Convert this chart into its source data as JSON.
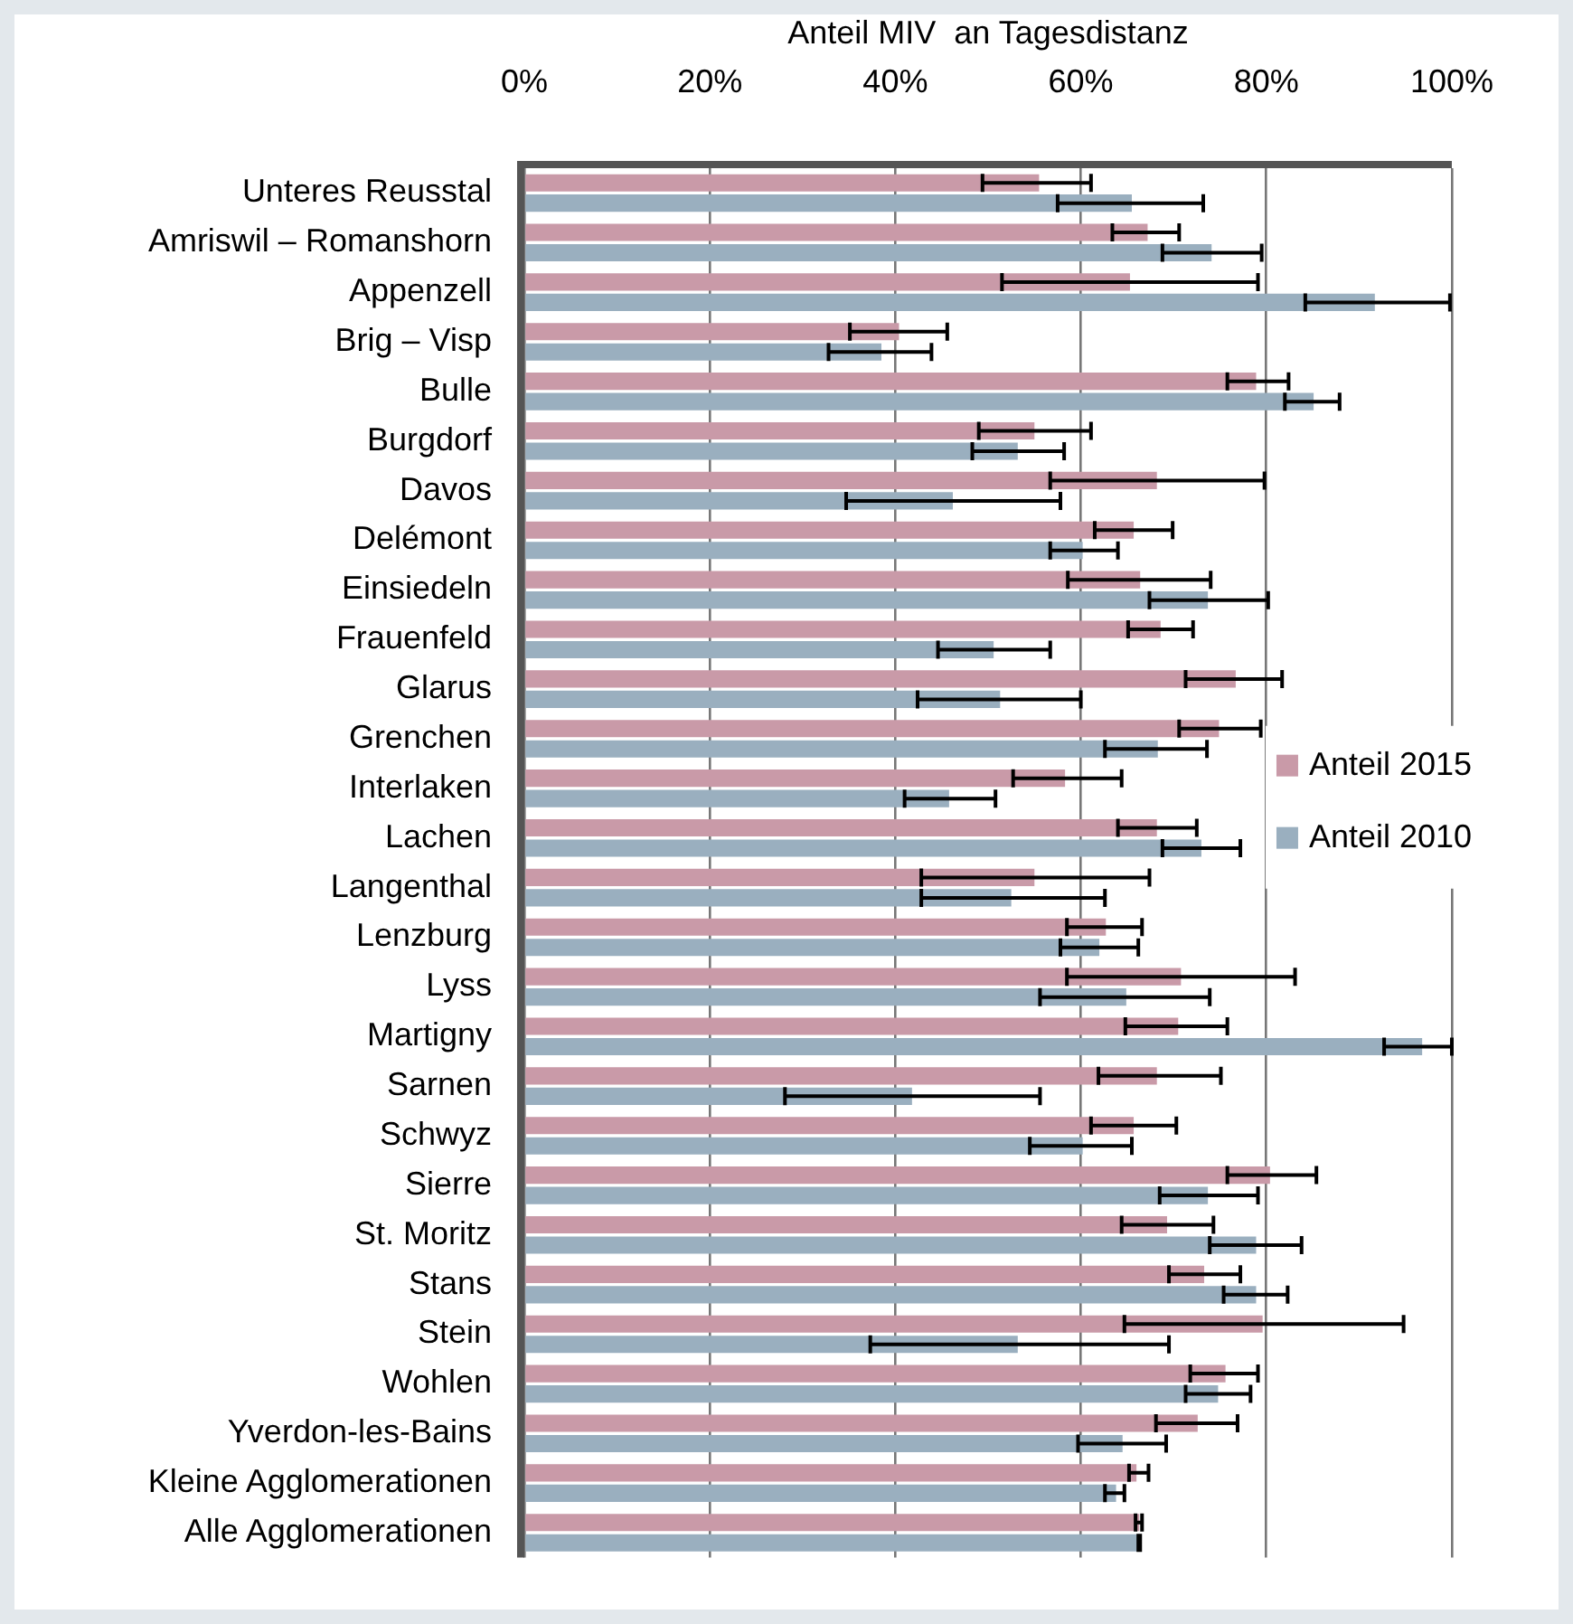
{
  "chart_data": {
    "type": "bar",
    "orientation": "horizontal",
    "xlabel": "Anteil MIV  an Tagesdistanz",
    "categories": [
      "Unteres Reusstal",
      "Amriswil – Romanshorn",
      "Appenzell",
      "Brig – Visp",
      "Bulle",
      "Burgdorf",
      "Davos",
      "Delémont",
      "Einsiedeln",
      "Frauenfeld",
      "Glarus",
      "Grenchen",
      "Interlaken",
      "Lachen",
      "Langenthal",
      "Lenzburg",
      "Lyss",
      "Martigny",
      "Sarnen",
      "Schwyz",
      "Sierre",
      "St. Moritz",
      "Stans",
      "Stein",
      "Wohlen",
      "Yverdon-les-Bains",
      "Kleine Agglomerationen",
      "Alle Agglomerationen"
    ],
    "series": [
      {
        "name": "Anteil 2015",
        "color": "#c99aa8",
        "values": [
          55.5,
          67.2,
          65.3,
          40.4,
          78.9,
          55.0,
          68.2,
          65.7,
          66.4,
          68.6,
          76.7,
          74.9,
          58.3,
          68.2,
          55.0,
          62.7,
          70.8,
          70.5,
          68.2,
          65.7,
          80.4,
          69.3,
          73.3,
          79.6,
          75.6,
          72.6,
          66.0,
          66.3
        ],
        "errors": [
          [
            49.4,
            61.1
          ],
          [
            63.4,
            70.6
          ],
          [
            51.5,
            79.1
          ],
          [
            35.1,
            45.6
          ],
          [
            75.8,
            82.4
          ],
          [
            49.0,
            61.1
          ],
          [
            56.7,
            79.8
          ],
          [
            61.5,
            69.9
          ],
          [
            58.6,
            74.0
          ],
          [
            65.1,
            72.1
          ],
          [
            71.3,
            81.7
          ],
          [
            70.6,
            79.4
          ],
          [
            52.7,
            64.4
          ],
          [
            64.0,
            72.5
          ],
          [
            42.8,
            67.4
          ],
          [
            58.5,
            66.6
          ],
          [
            58.5,
            83.1
          ],
          [
            64.8,
            75.8
          ],
          [
            61.9,
            75.1
          ],
          [
            61.1,
            70.3
          ],
          [
            75.8,
            85.4
          ],
          [
            64.4,
            74.3
          ],
          [
            69.5,
            77.2
          ],
          [
            64.7,
            94.8
          ],
          [
            71.8,
            79.1
          ],
          [
            68.1,
            76.9
          ],
          [
            65.2,
            67.3
          ],
          [
            65.9,
            66.6
          ]
        ]
      },
      {
        "name": "Anteil 2010",
        "color": "#9aafbf",
        "values": [
          65.5,
          74.1,
          91.7,
          38.5,
          85.1,
          53.2,
          46.2,
          60.2,
          73.7,
          50.6,
          51.3,
          68.3,
          45.8,
          73.0,
          52.5,
          62.0,
          64.9,
          96.8,
          41.8,
          60.2,
          73.7,
          78.9,
          78.9,
          53.2,
          74.8,
          64.5,
          63.8,
          66.3
        ],
        "errors": [
          [
            57.5,
            73.2
          ],
          [
            68.8,
            79.5
          ],
          [
            84.2,
            99.8
          ],
          [
            32.8,
            43.9
          ],
          [
            82.0,
            87.9
          ],
          [
            48.3,
            58.2
          ],
          [
            34.7,
            57.8
          ],
          [
            56.7,
            64.0
          ],
          [
            67.4,
            80.2
          ],
          [
            44.6,
            56.7
          ],
          [
            42.4,
            60.0
          ],
          [
            62.6,
            73.6
          ],
          [
            41.0,
            50.8
          ],
          [
            68.8,
            77.2
          ],
          [
            42.8,
            62.6
          ],
          [
            57.8,
            66.2
          ],
          [
            55.6,
            73.9
          ],
          [
            92.7,
            100
          ],
          [
            28.1,
            55.6
          ],
          [
            54.5,
            65.5
          ],
          [
            68.5,
            79.1
          ],
          [
            73.9,
            83.8
          ],
          [
            75.4,
            82.3
          ],
          [
            37.3,
            69.5
          ],
          [
            71.3,
            78.3
          ],
          [
            59.7,
            69.2
          ],
          [
            62.6,
            64.7
          ],
          [
            66.2,
            66.4
          ]
        ]
      }
    ],
    "xlim": [
      0,
      100
    ],
    "xticks": [
      {
        "value": 0,
        "label": "0%"
      },
      {
        "value": 20,
        "label": "20%"
      },
      {
        "value": 40,
        "label": "40%"
      },
      {
        "value": 60,
        "label": "60%"
      },
      {
        "value": 80,
        "label": "80%"
      },
      {
        "value": 100,
        "label": "100%"
      }
    ],
    "grid": "x",
    "legend": "right"
  }
}
